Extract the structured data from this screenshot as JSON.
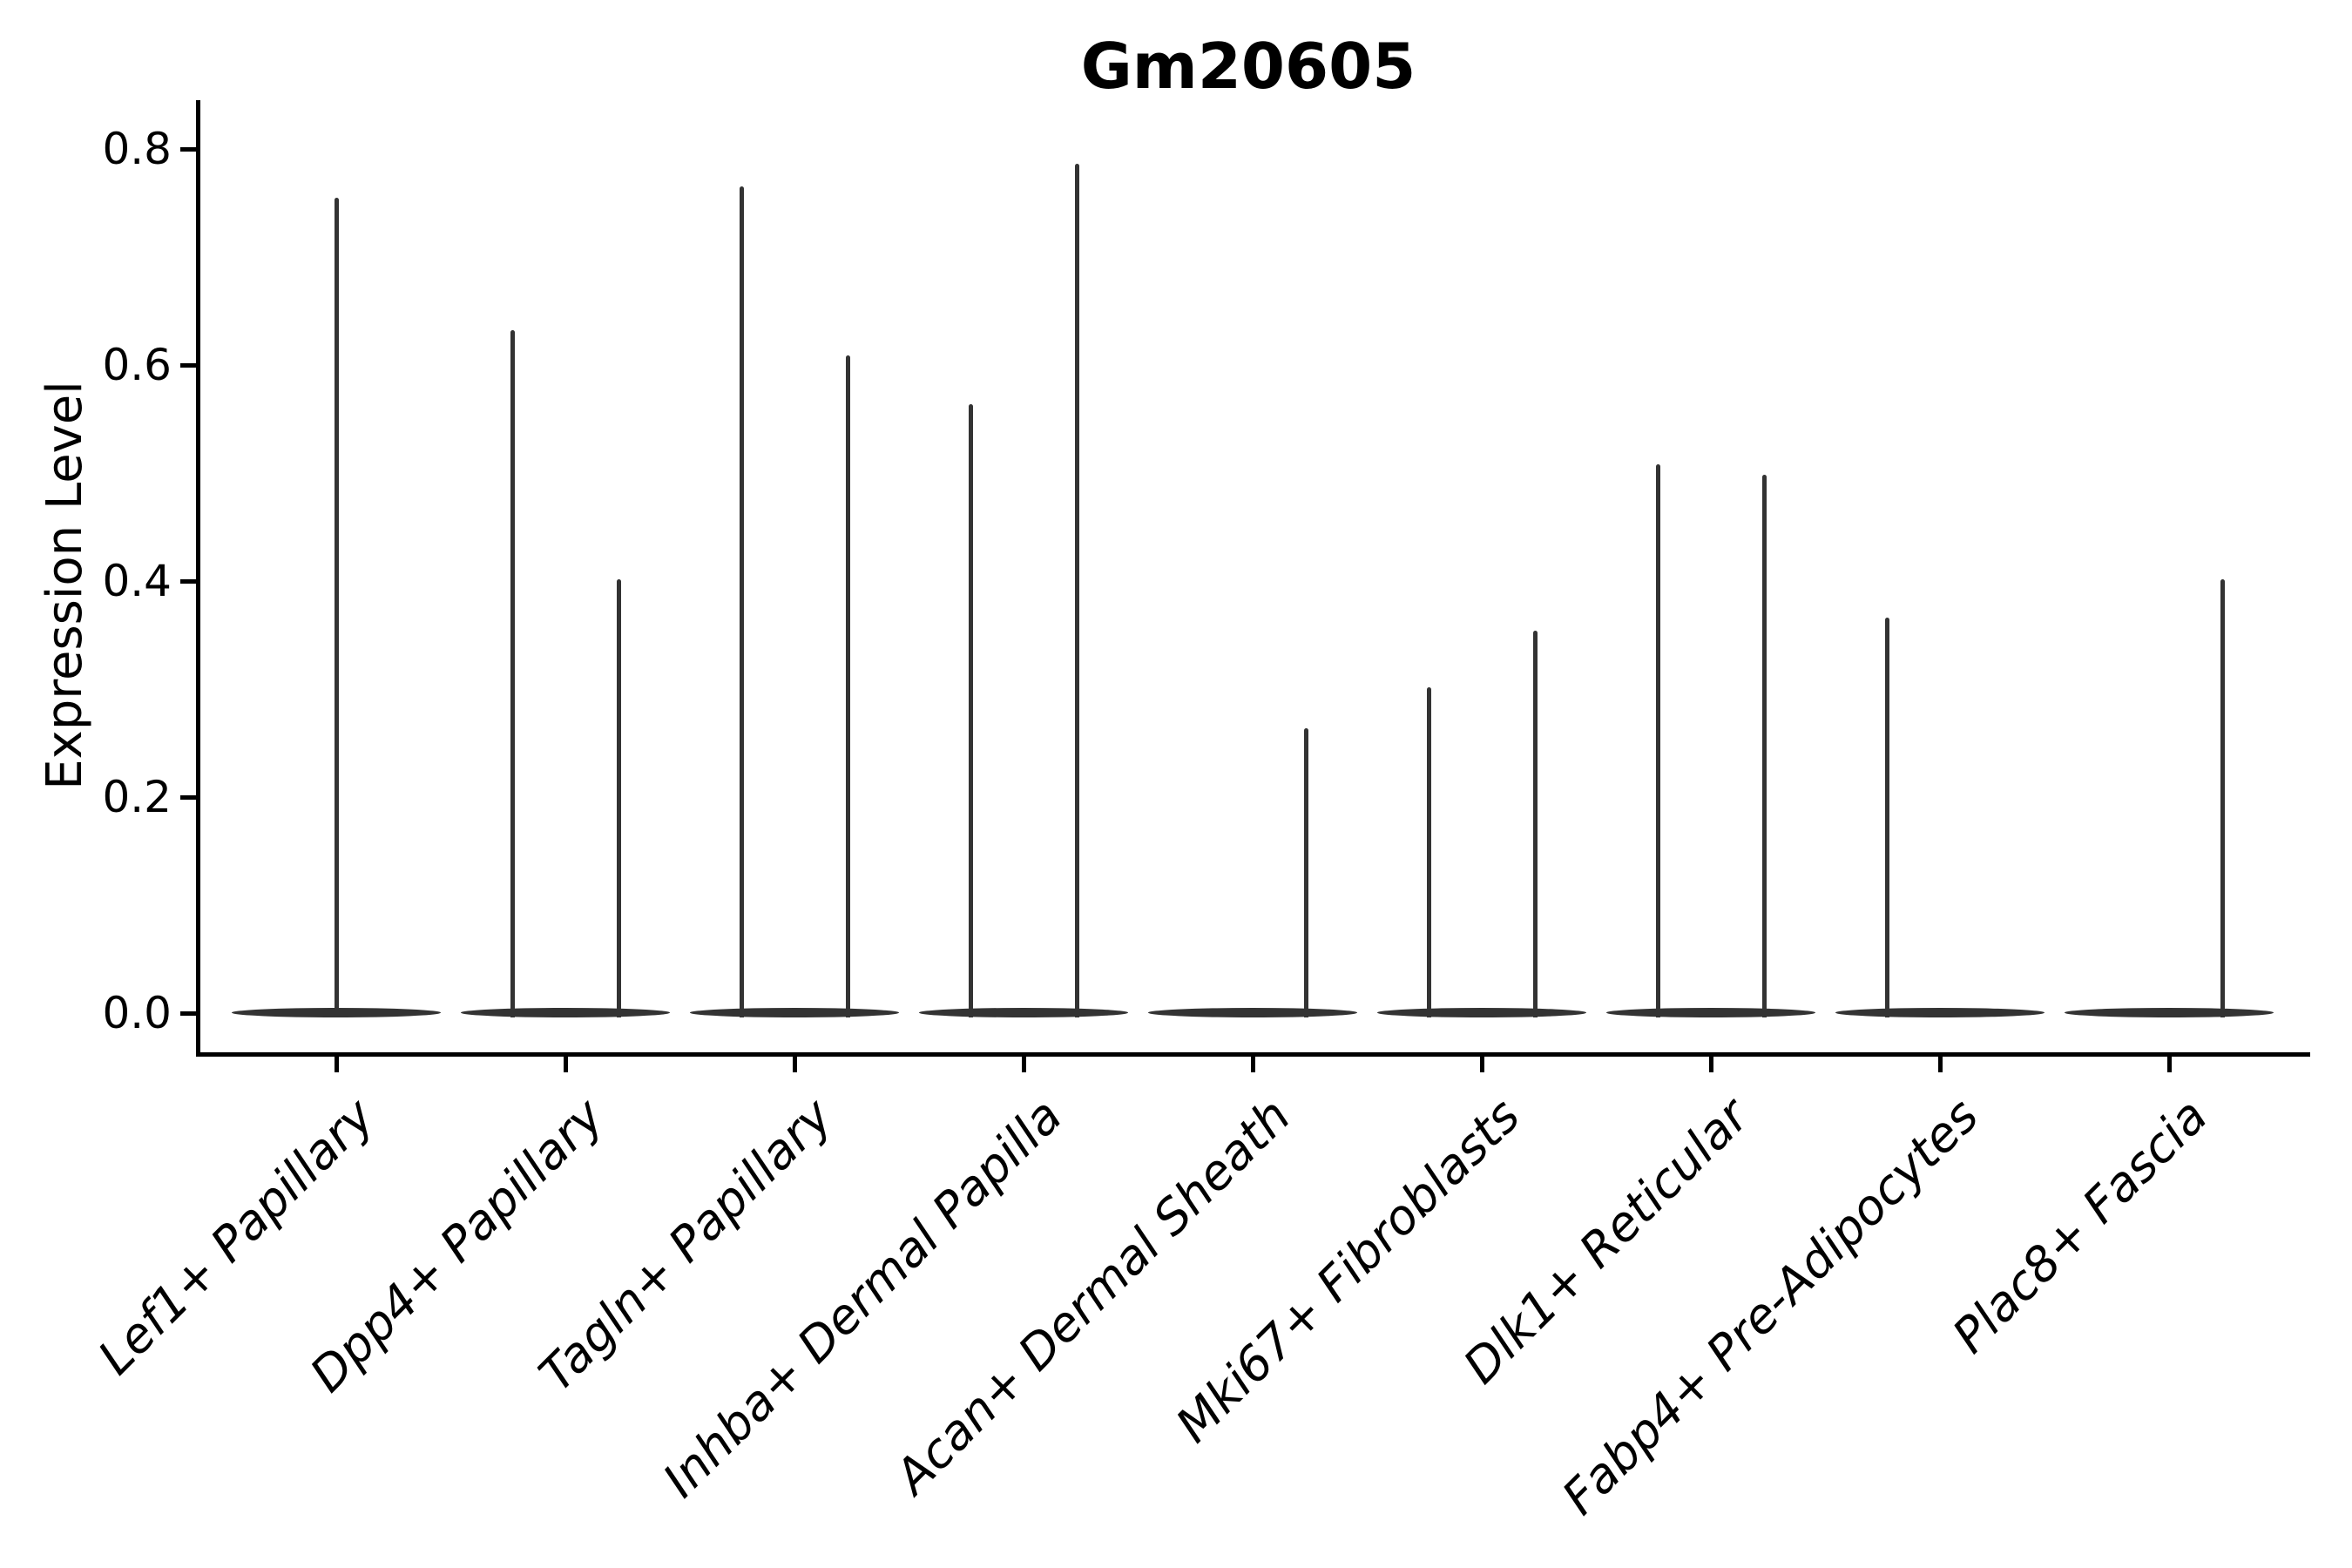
{
  "figure": {
    "title": "Gm20605",
    "y_axis_label": "Expression Level"
  },
  "chart_data": {
    "type": "violin",
    "title": "Gm20605",
    "xlabel": "",
    "ylabel": "Expression Level",
    "y_tick_labels": [
      "0.0",
      "0.2",
      "0.4",
      "0.6",
      "0.8"
    ],
    "y_tick_values": [
      0.0,
      0.2,
      0.4,
      0.6,
      0.8
    ],
    "ylim": [
      -0.04,
      0.85
    ],
    "grid": false,
    "legend_position": "none",
    "categories": [
      "Lef1+ Papillary",
      "Dpp4+ Papillary",
      "Tagln+ Papillary",
      "Inhba+ Dermal Papilla",
      "Acan+ Dermal Sheath",
      "Mki67+ Fibroblasts",
      "Dlk1+ Reticular",
      "Fabp4+ Pre-Adipocytes",
      "Plac8+ Fascia"
    ],
    "violins": [
      {
        "category": "Lef1+ Papillary",
        "spikes": [
          {
            "side": "center",
            "value": 0.755
          }
        ]
      },
      {
        "category": "Dpp4+ Papillary",
        "spikes": [
          {
            "side": "left",
            "value": 0.632
          },
          {
            "side": "right",
            "value": 0.402
          }
        ]
      },
      {
        "category": "Tagln+ Papillary",
        "spikes": [
          {
            "side": "left",
            "value": 0.765
          },
          {
            "side": "right",
            "value": 0.609
          }
        ]
      },
      {
        "category": "Inhba+ Dermal Papilla",
        "spikes": [
          {
            "side": "left",
            "value": 0.564
          },
          {
            "side": "right",
            "value": 0.786
          }
        ]
      },
      {
        "category": "Acan+ Dermal Sheath",
        "spikes": [
          {
            "side": "right",
            "value": 0.264
          }
        ]
      },
      {
        "category": "Mki67+ Fibroblasts",
        "spikes": [
          {
            "side": "left",
            "value": 0.302
          },
          {
            "side": "right",
            "value": 0.354
          }
        ]
      },
      {
        "category": "Dlk1+ Reticular",
        "spikes": [
          {
            "side": "left",
            "value": 0.508
          },
          {
            "side": "right",
            "value": 0.498
          }
        ]
      },
      {
        "category": "Fabp4+ Pre-Adipocytes",
        "spikes": [
          {
            "side": "left",
            "value": 0.366
          }
        ]
      },
      {
        "category": "Plac8+ Fascia",
        "spikes": [
          {
            "side": "right",
            "value": 0.402
          }
        ]
      }
    ],
    "colors": {
      "violin": "#333333",
      "axis": "#000000",
      "text": "#000000",
      "background": "#ffffff"
    }
  }
}
